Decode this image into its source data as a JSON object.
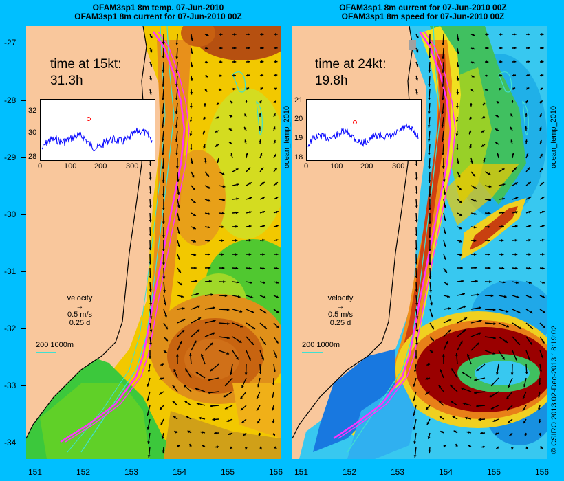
{
  "left_panel": {
    "title_line1": "OFAM3sp1 8m temp. 07-Jun-2010",
    "title_line2": "OFAM3sp1 8m current for 07-Jun-2010 00Z",
    "time_label": "time at 15kt:",
    "time_value": "31.3h",
    "inset": {
      "y_ticks": [
        "32",
        "30",
        "28"
      ],
      "x_ticks": [
        "0",
        "100",
        "200",
        "300"
      ]
    },
    "velocity_title": "velocity",
    "velocity_speed": "0.5 m/s",
    "velocity_time": "0.25 d",
    "contour_label": "200  1000m"
  },
  "right_panel": {
    "title_line1": "OFAM3sp1 8m current for 07-Jun-2010 00Z",
    "title_line2": "OFAM3sp1 8m speed for 07-Jun-2010 00Z",
    "time_label": "time at 24kt:",
    "time_value": "19.8h",
    "inset": {
      "y_ticks": [
        "21",
        "20",
        "19",
        "18"
      ],
      "x_ticks": [
        "0",
        "100",
        "200",
        "300"
      ]
    },
    "velocity_title": "velocity",
    "velocity_speed": "0.5 m/s",
    "velocity_time": "0.25 d",
    "contour_label": "200  1000m"
  },
  "y_axis_labels": [
    "-27",
    "-28",
    "-29",
    "-30",
    "-31",
    "-32",
    "-33",
    "-34"
  ],
  "x_axis_labels": [
    "151",
    "152",
    "153",
    "154",
    "155",
    "156"
  ],
  "side_label_middle": "ocean_temp_2010",
  "side_label_right": "ocean_temp_2010",
  "credit": "© CSIRO 2013   02-Dec-2013 18:19:02",
  "colors": {
    "background": "#00bfff",
    "land": "#f9c79c",
    "track": "#ff33ff",
    "contour": "#40e0d0"
  }
}
